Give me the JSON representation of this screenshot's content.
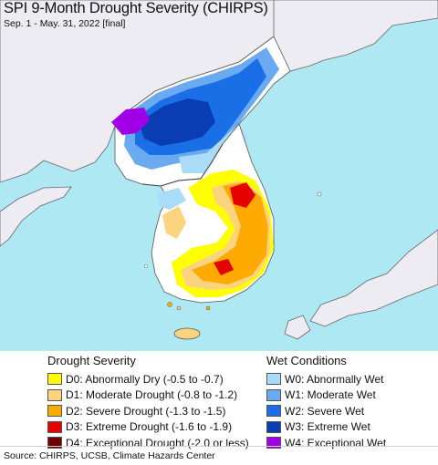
{
  "header": {
    "title": "SPI 9-Month Drought Severity (CHIRPS)",
    "subtitle": "Sep. 1 - May. 31, 2022 [final]"
  },
  "legend_drought": {
    "heading": "Drought Severity",
    "items": [
      {
        "label": "D0: Abnormally Dry (-0.5 to -0.7)",
        "color": "#ffff00"
      },
      {
        "label": "D1: Moderate Drought (-0.8 to -1.2)",
        "color": "#fcd37f"
      },
      {
        "label": "D2: Severe Drought (-1.3 to -1.5)",
        "color": "#ffaa00"
      },
      {
        "label": "D3: Extreme Drought (-1.6 to -1.9)",
        "color": "#e60000"
      },
      {
        "label": "D4: Exceptional Drought (-2.0 or less)",
        "color": "#730000"
      }
    ]
  },
  "legend_wet": {
    "heading": "Wet Conditions",
    "items": [
      {
        "label": "W0: Abnormally Wet",
        "color": "#aadcf8"
      },
      {
        "label": "W1: Moderate Wet",
        "color": "#6aaaf0"
      },
      {
        "label": "W2: Severe Wet",
        "color": "#1a6ee6"
      },
      {
        "label": "W3: Extreme Wet",
        "color": "#0a3cb4"
      },
      {
        "label": "W4: Exceptional Wet",
        "color": "#a000e6"
      }
    ]
  },
  "colors": {
    "ocean": "#aee8f2",
    "land_outside": "#ececf2",
    "land_neutral": "#ffffff",
    "border": "#555555"
  },
  "footer": {
    "source": "Source: CHIRPS, UCSB, Climate Hazards Center"
  }
}
